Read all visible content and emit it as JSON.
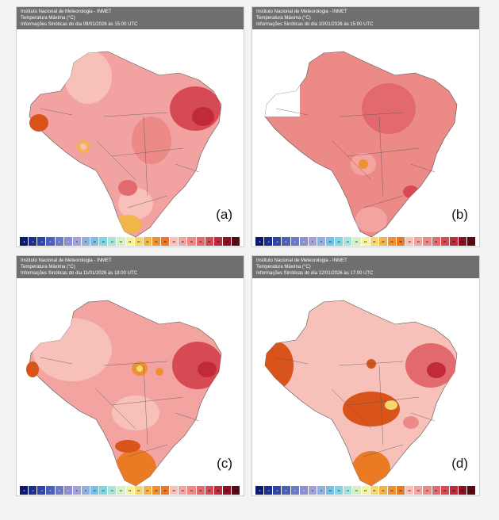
{
  "panels": [
    {
      "id": "a",
      "label": "(a)",
      "header": {
        "line1": "Instituto Nacional de Meteorologia - INMET",
        "line2": "Temperatura Máxima (°C)",
        "line3": "Informações Sinóticas do dia 09/01/2026 às 15:00 UTC"
      }
    },
    {
      "id": "b",
      "label": "(b)",
      "header": {
        "line1": "Instituto Nacional de Meteorologia - INMET",
        "line2": "Temperatura Máxima (°C)",
        "line3": "Informações Sinóticas do dia 10/01/2026 às 15:00 UTC"
      }
    },
    {
      "id": "c",
      "label": "(c)",
      "header": {
        "line1": "Instituto Nacional de Meteorologia - INMET",
        "line2": "Temperatura Máxima (°C)",
        "line3": "Informações Sinóticas do dia 11/01/2026 às 18:00 UTC"
      }
    },
    {
      "id": "d",
      "label": "(d)",
      "header": {
        "line1": "Instituto Nacional de Meteorologia - INMET",
        "line2": "Temperatura Máxima (°C)",
        "line3": "Informações Sinóticas do dia 12/01/2026 às 17:00 UTC"
      }
    }
  ],
  "colorbar": {
    "ticks": [
      "-6",
      "-4",
      "-2",
      "0",
      "2",
      "4",
      "6",
      "8",
      "10",
      "12",
      "14",
      "16",
      "18",
      "20",
      "22",
      "24",
      "26",
      "28",
      "30",
      "32",
      "34",
      "36",
      "38",
      "40",
      "42"
    ],
    "colors": [
      "#0b1a6e",
      "#1b2e8c",
      "#2c45a6",
      "#4a5fb8",
      "#6d78c4",
      "#8b8fcf",
      "#a6a0d8",
      "#8fb0e0",
      "#79c0e8",
      "#82d6e4",
      "#a6e6d8",
      "#d6f0c6",
      "#f6f3a0",
      "#f6d870",
      "#f3b54a",
      "#ee9130",
      "#ea7a24",
      "#f7c0b8",
      "#f4a4a0",
      "#ec8a88",
      "#e26a6e",
      "#d64a54",
      "#c02a3a",
      "#8e1024",
      "#5a0814"
    ]
  }
}
